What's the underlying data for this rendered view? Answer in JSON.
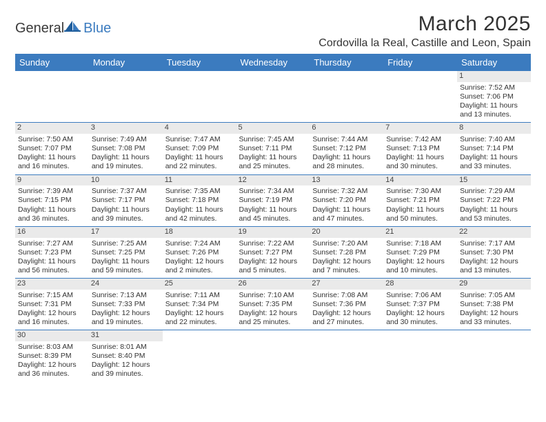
{
  "logo": {
    "main": "General",
    "accent": "Blue"
  },
  "title": "March 2025",
  "location": "Cordovilla la Real, Castille and Leon, Spain",
  "colors": {
    "header_bg": "#3b7bbf",
    "header_fg": "#ffffff",
    "daynum_bg": "#eaeaea",
    "border": "#3b7bbf",
    "text": "#333333"
  },
  "weekdays": [
    "Sunday",
    "Monday",
    "Tuesday",
    "Wednesday",
    "Thursday",
    "Friday",
    "Saturday"
  ],
  "weeks": [
    [
      null,
      null,
      null,
      null,
      null,
      null,
      {
        "n": "1",
        "sunrise": "Sunrise: 7:52 AM",
        "sunset": "Sunset: 7:06 PM",
        "day1": "Daylight: 11 hours",
        "day2": "and 13 minutes."
      }
    ],
    [
      {
        "n": "2",
        "sunrise": "Sunrise: 7:50 AM",
        "sunset": "Sunset: 7:07 PM",
        "day1": "Daylight: 11 hours",
        "day2": "and 16 minutes."
      },
      {
        "n": "3",
        "sunrise": "Sunrise: 7:49 AM",
        "sunset": "Sunset: 7:08 PM",
        "day1": "Daylight: 11 hours",
        "day2": "and 19 minutes."
      },
      {
        "n": "4",
        "sunrise": "Sunrise: 7:47 AM",
        "sunset": "Sunset: 7:09 PM",
        "day1": "Daylight: 11 hours",
        "day2": "and 22 minutes."
      },
      {
        "n": "5",
        "sunrise": "Sunrise: 7:45 AM",
        "sunset": "Sunset: 7:11 PM",
        "day1": "Daylight: 11 hours",
        "day2": "and 25 minutes."
      },
      {
        "n": "6",
        "sunrise": "Sunrise: 7:44 AM",
        "sunset": "Sunset: 7:12 PM",
        "day1": "Daylight: 11 hours",
        "day2": "and 28 minutes."
      },
      {
        "n": "7",
        "sunrise": "Sunrise: 7:42 AM",
        "sunset": "Sunset: 7:13 PM",
        "day1": "Daylight: 11 hours",
        "day2": "and 30 minutes."
      },
      {
        "n": "8",
        "sunrise": "Sunrise: 7:40 AM",
        "sunset": "Sunset: 7:14 PM",
        "day1": "Daylight: 11 hours",
        "day2": "and 33 minutes."
      }
    ],
    [
      {
        "n": "9",
        "sunrise": "Sunrise: 7:39 AM",
        "sunset": "Sunset: 7:15 PM",
        "day1": "Daylight: 11 hours",
        "day2": "and 36 minutes."
      },
      {
        "n": "10",
        "sunrise": "Sunrise: 7:37 AM",
        "sunset": "Sunset: 7:17 PM",
        "day1": "Daylight: 11 hours",
        "day2": "and 39 minutes."
      },
      {
        "n": "11",
        "sunrise": "Sunrise: 7:35 AM",
        "sunset": "Sunset: 7:18 PM",
        "day1": "Daylight: 11 hours",
        "day2": "and 42 minutes."
      },
      {
        "n": "12",
        "sunrise": "Sunrise: 7:34 AM",
        "sunset": "Sunset: 7:19 PM",
        "day1": "Daylight: 11 hours",
        "day2": "and 45 minutes."
      },
      {
        "n": "13",
        "sunrise": "Sunrise: 7:32 AM",
        "sunset": "Sunset: 7:20 PM",
        "day1": "Daylight: 11 hours",
        "day2": "and 47 minutes."
      },
      {
        "n": "14",
        "sunrise": "Sunrise: 7:30 AM",
        "sunset": "Sunset: 7:21 PM",
        "day1": "Daylight: 11 hours",
        "day2": "and 50 minutes."
      },
      {
        "n": "15",
        "sunrise": "Sunrise: 7:29 AM",
        "sunset": "Sunset: 7:22 PM",
        "day1": "Daylight: 11 hours",
        "day2": "and 53 minutes."
      }
    ],
    [
      {
        "n": "16",
        "sunrise": "Sunrise: 7:27 AM",
        "sunset": "Sunset: 7:23 PM",
        "day1": "Daylight: 11 hours",
        "day2": "and 56 minutes."
      },
      {
        "n": "17",
        "sunrise": "Sunrise: 7:25 AM",
        "sunset": "Sunset: 7:25 PM",
        "day1": "Daylight: 11 hours",
        "day2": "and 59 minutes."
      },
      {
        "n": "18",
        "sunrise": "Sunrise: 7:24 AM",
        "sunset": "Sunset: 7:26 PM",
        "day1": "Daylight: 12 hours",
        "day2": "and 2 minutes."
      },
      {
        "n": "19",
        "sunrise": "Sunrise: 7:22 AM",
        "sunset": "Sunset: 7:27 PM",
        "day1": "Daylight: 12 hours",
        "day2": "and 5 minutes."
      },
      {
        "n": "20",
        "sunrise": "Sunrise: 7:20 AM",
        "sunset": "Sunset: 7:28 PM",
        "day1": "Daylight: 12 hours",
        "day2": "and 7 minutes."
      },
      {
        "n": "21",
        "sunrise": "Sunrise: 7:18 AM",
        "sunset": "Sunset: 7:29 PM",
        "day1": "Daylight: 12 hours",
        "day2": "and 10 minutes."
      },
      {
        "n": "22",
        "sunrise": "Sunrise: 7:17 AM",
        "sunset": "Sunset: 7:30 PM",
        "day1": "Daylight: 12 hours",
        "day2": "and 13 minutes."
      }
    ],
    [
      {
        "n": "23",
        "sunrise": "Sunrise: 7:15 AM",
        "sunset": "Sunset: 7:31 PM",
        "day1": "Daylight: 12 hours",
        "day2": "and 16 minutes."
      },
      {
        "n": "24",
        "sunrise": "Sunrise: 7:13 AM",
        "sunset": "Sunset: 7:33 PM",
        "day1": "Daylight: 12 hours",
        "day2": "and 19 minutes."
      },
      {
        "n": "25",
        "sunrise": "Sunrise: 7:11 AM",
        "sunset": "Sunset: 7:34 PM",
        "day1": "Daylight: 12 hours",
        "day2": "and 22 minutes."
      },
      {
        "n": "26",
        "sunrise": "Sunrise: 7:10 AM",
        "sunset": "Sunset: 7:35 PM",
        "day1": "Daylight: 12 hours",
        "day2": "and 25 minutes."
      },
      {
        "n": "27",
        "sunrise": "Sunrise: 7:08 AM",
        "sunset": "Sunset: 7:36 PM",
        "day1": "Daylight: 12 hours",
        "day2": "and 27 minutes."
      },
      {
        "n": "28",
        "sunrise": "Sunrise: 7:06 AM",
        "sunset": "Sunset: 7:37 PM",
        "day1": "Daylight: 12 hours",
        "day2": "and 30 minutes."
      },
      {
        "n": "29",
        "sunrise": "Sunrise: 7:05 AM",
        "sunset": "Sunset: 7:38 PM",
        "day1": "Daylight: 12 hours",
        "day2": "and 33 minutes."
      }
    ],
    [
      {
        "n": "30",
        "sunrise": "Sunrise: 8:03 AM",
        "sunset": "Sunset: 8:39 PM",
        "day1": "Daylight: 12 hours",
        "day2": "and 36 minutes."
      },
      {
        "n": "31",
        "sunrise": "Sunrise: 8:01 AM",
        "sunset": "Sunset: 8:40 PM",
        "day1": "Daylight: 12 hours",
        "day2": "and 39 minutes."
      },
      null,
      null,
      null,
      null,
      null
    ]
  ]
}
